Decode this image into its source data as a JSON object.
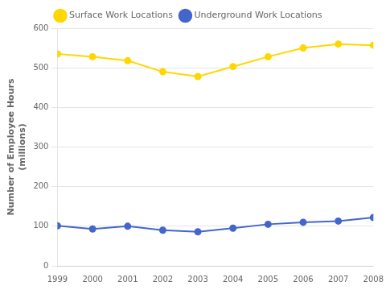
{
  "chart_data": {
    "type": "line",
    "ylabel": "Number of Employee Hours\n(millions)",
    "x": [
      1999,
      2000,
      2001,
      2002,
      2003,
      2004,
      2005,
      2006,
      2007,
      2008
    ],
    "series": [
      {
        "name": "Surface Work Locations",
        "color": "#FFD700",
        "values": [
          535,
          528,
          518,
          490,
          478,
          503,
          528,
          550,
          560,
          557
        ]
      },
      {
        "name": "Underground Work Locations",
        "color": "#4466CC",
        "values": [
          101,
          93,
          100,
          90,
          86,
          95,
          105,
          110,
          113,
          122
        ]
      }
    ],
    "xlim": [
      1999,
      2008
    ],
    "xticks": [
      1999,
      2000,
      2001,
      2002,
      2003,
      2004,
      2005,
      2006,
      2007,
      2008
    ],
    "ylim": [
      0,
      600
    ],
    "yticks": [
      0,
      100,
      200,
      300,
      400,
      500,
      600
    ],
    "grid": "y",
    "legend": "top",
    "marker": "circle"
  }
}
